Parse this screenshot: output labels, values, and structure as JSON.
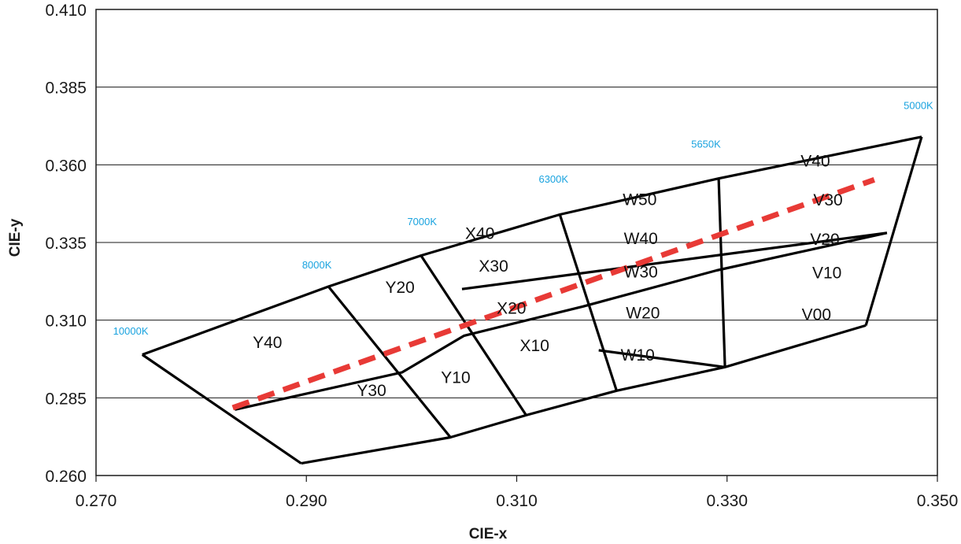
{
  "chart_data": {
    "type": "line",
    "title": "",
    "xlabel": "CIE-x",
    "ylabel": "CIE-y",
    "xlim": [
      0.27,
      0.35
    ],
    "ylim": [
      0.26,
      0.41
    ],
    "x_ticks": [
      "0.270",
      "0.290",
      "0.310",
      "0.330",
      "0.350"
    ],
    "y_ticks": [
      "0.260",
      "0.285",
      "0.310",
      "0.335",
      "0.360",
      "0.385",
      "0.410"
    ],
    "grid": "horizontal",
    "colors": {
      "grid_lines": "#000000",
      "dashed_line": "#e83a36",
      "cct_labels": "#1aa3df"
    },
    "grid_lines": [
      {
        "points": [
          [
            0.2744,
            0.2989
          ],
          [
            0.2921,
            0.3208
          ],
          [
            0.3009,
            0.3308
          ],
          [
            0.3141,
            0.344
          ],
          [
            0.3292,
            0.3556
          ],
          [
            0.3485,
            0.369
          ]
        ]
      },
      {
        "points": [
          [
            0.2832,
            0.2812
          ],
          [
            0.2991,
            0.2932
          ],
          [
            0.305,
            0.305
          ],
          [
            0.3163,
            0.3144
          ],
          [
            0.329,
            0.326
          ],
          [
            0.3452,
            0.3381
          ]
        ]
      },
      {
        "points": [
          [
            0.2895,
            0.2639
          ],
          [
            0.3037,
            0.2723
          ],
          [
            0.3109,
            0.2794
          ],
          [
            0.3195,
            0.2873
          ],
          [
            0.3298,
            0.2949
          ],
          [
            0.3432,
            0.3083
          ]
        ]
      },
      {
        "points": [
          [
            0.2744,
            0.2989
          ],
          [
            0.2895,
            0.2639
          ]
        ]
      },
      {
        "points": [
          [
            0.2921,
            0.3208
          ],
          [
            0.3037,
            0.2723
          ]
        ]
      },
      {
        "points": [
          [
            0.3009,
            0.3308
          ],
          [
            0.3109,
            0.2794
          ]
        ]
      },
      {
        "points": [
          [
            0.3141,
            0.344
          ],
          [
            0.3195,
            0.2873
          ]
        ]
      },
      {
        "points": [
          [
            0.3292,
            0.3556
          ],
          [
            0.3298,
            0.2949
          ]
        ]
      },
      {
        "points": [
          [
            0.3485,
            0.369
          ],
          [
            0.3432,
            0.3083
          ]
        ]
      },
      {
        "points": [
          [
            0.3048,
            0.32
          ],
          [
            0.3452,
            0.3381
          ]
        ]
      },
      {
        "points": [
          [
            0.3178,
            0.3003
          ],
          [
            0.3298,
            0.2949
          ]
        ]
      }
    ],
    "dashed_line": [
      [
        0.283,
        0.2818
      ],
      [
        0.344,
        0.3552
      ]
    ],
    "bin_labels": [
      {
        "text": "Y40",
        "x": 0.2863,
        "y": 0.301
      },
      {
        "text": "Y30",
        "x": 0.2962,
        "y": 0.2856
      },
      {
        "text": "Y20",
        "x": 0.2989,
        "y": 0.3188
      },
      {
        "text": "Y10",
        "x": 0.3042,
        "y": 0.2898
      },
      {
        "text": "X40",
        "x": 0.3065,
        "y": 0.3362
      },
      {
        "text": "X30",
        "x": 0.3078,
        "y": 0.3256
      },
      {
        "text": "X20",
        "x": 0.3095,
        "y": 0.3121
      },
      {
        "text": "X10",
        "x": 0.3117,
        "y": 0.3
      },
      {
        "text": "W50",
        "x": 0.3217,
        "y": 0.347
      },
      {
        "text": "W40",
        "x": 0.3218,
        "y": 0.3345
      },
      {
        "text": "W30",
        "x": 0.3218,
        "y": 0.3237
      },
      {
        "text": "W20",
        "x": 0.322,
        "y": 0.3106
      },
      {
        "text": "W10",
        "x": 0.3215,
        "y": 0.297
      },
      {
        "text": "V40",
        "x": 0.3384,
        "y": 0.3595
      },
      {
        "text": "V30",
        "x": 0.3396,
        "y": 0.3469
      },
      {
        "text": "V20",
        "x": 0.3393,
        "y": 0.3343
      },
      {
        "text": "V10",
        "x": 0.3395,
        "y": 0.3235
      },
      {
        "text": "V00",
        "x": 0.3385,
        "y": 0.3101
      }
    ],
    "cct_labels": [
      {
        "text": "10000K",
        "x": 0.2733,
        "y": 0.3054
      },
      {
        "text": "8000K",
        "x": 0.291,
        "y": 0.3267
      },
      {
        "text": "7000K",
        "x": 0.301,
        "y": 0.3406
      },
      {
        "text": "6300K",
        "x": 0.3135,
        "y": 0.3542
      },
      {
        "text": "5650K",
        "x": 0.328,
        "y": 0.3655
      },
      {
        "text": "5000K",
        "x": 0.3482,
        "y": 0.3779
      }
    ]
  }
}
